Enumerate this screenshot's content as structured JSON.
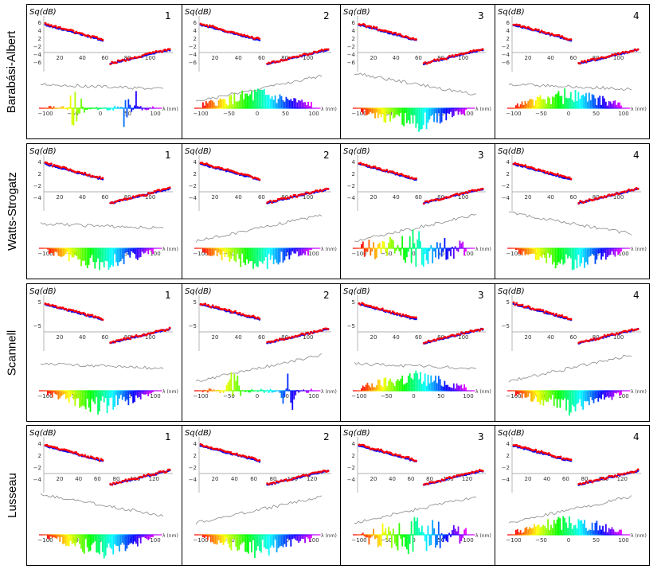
{
  "figure_title": "",
  "row_labels": [
    "Barabási-Albert",
    "Watts-Strogatz",
    "Scannell",
    "Lusseau"
  ],
  "panel_numbers": [
    "1",
    "2",
    "3",
    "4"
  ],
  "colors": {
    "data": "#ff0000",
    "fit": "#0000ff",
    "line": "#888888",
    "axis": "#999999"
  },
  "chart_data": {
    "type": "composite",
    "description_free": true,
    "ylabel": "Sq(dB)",
    "lambda_label": "λ (nm)",
    "rows": [
      {
        "name": "Barabási-Albert",
        "top_yticks": [
          "6",
          "4",
          "2",
          "−2",
          "−4",
          "−6"
        ],
        "top_xticks": [
          "20",
          "40",
          "60",
          "80",
          "100"
        ],
        "lambda_ticks": [
          "−100",
          "−50",
          "0",
          "50",
          "100"
        ],
        "panels": [
          {
            "number": "1",
            "line_trend": "flat",
            "spectrum": "sparse"
          },
          {
            "number": "2",
            "line_trend": "up",
            "spectrum": "positive"
          },
          {
            "number": "3",
            "line_trend": "down",
            "spectrum": "negative"
          },
          {
            "number": "4",
            "line_trend": "flat",
            "spectrum": "positive"
          }
        ]
      },
      {
        "name": "Watts-Strogatz",
        "top_yticks": [
          "4",
          "2",
          "−2",
          "−4"
        ],
        "top_xticks": [
          "20",
          "40",
          "60",
          "80",
          "100"
        ],
        "lambda_ticks": [
          "−100",
          "−50",
          "0",
          "50",
          "100"
        ],
        "panels": [
          {
            "number": "1",
            "line_trend": "flat",
            "spectrum": "negative"
          },
          {
            "number": "2",
            "line_trend": "up",
            "spectrum": "negative"
          },
          {
            "number": "3",
            "line_trend": "up",
            "spectrum": "mixed"
          },
          {
            "number": "4",
            "line_trend": "down",
            "spectrum": "negative"
          }
        ]
      },
      {
        "name": "Scannell",
        "top_yticks": [
          "5",
          "−5"
        ],
        "top_xticks": [
          "20",
          "40",
          "60",
          "80",
          "100"
        ],
        "lambda_ticks": [
          "−100",
          "−50",
          "0",
          "50",
          "100"
        ],
        "panels": [
          {
            "number": "1",
            "line_trend": "flat",
            "spectrum": "negative"
          },
          {
            "number": "2",
            "line_trend": "up",
            "spectrum": "sparse"
          },
          {
            "number": "3",
            "line_trend": "flat",
            "spectrum": "positive"
          },
          {
            "number": "4",
            "line_trend": "up",
            "spectrum": "negative"
          }
        ]
      },
      {
        "name": "Lusseau",
        "top_yticks": [
          "4",
          "2",
          "−2",
          "−4"
        ],
        "top_xticks": [
          "20",
          "40",
          "60",
          "80",
          "100",
          "120"
        ],
        "lambda_ticks": [
          "−100",
          "−50",
          "0",
          "50",
          "100"
        ],
        "panels": [
          {
            "number": "1",
            "line_trend": "down",
            "spectrum": "negative"
          },
          {
            "number": "2",
            "line_trend": "up",
            "spectrum": "negative"
          },
          {
            "number": "3",
            "line_trend": "up",
            "spectrum": "mixed"
          },
          {
            "number": "4",
            "line_trend": "up",
            "spectrum": "positive"
          }
        ]
      }
    ]
  }
}
